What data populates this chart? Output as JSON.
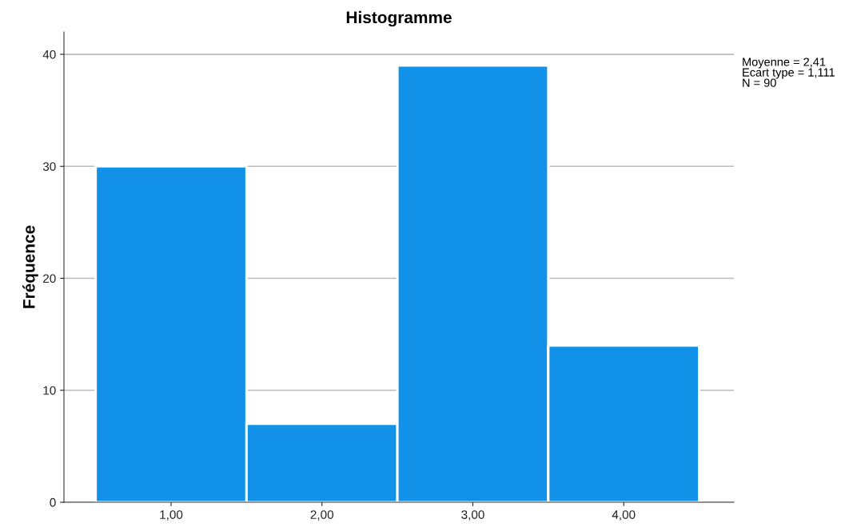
{
  "chart_data": {
    "type": "histogram",
    "title": "Histogramme",
    "ylabel": "Fréquence",
    "bins": [
      0.5,
      1.5,
      2.5,
      3.5,
      4.5
    ],
    "values": [
      30,
      7,
      39,
      14
    ],
    "color": "#1192e8",
    "xlim": [
      0.29,
      4.73
    ],
    "xticks": [
      {
        "value": 1,
        "label": "1,00"
      },
      {
        "value": 2,
        "label": "2,00"
      },
      {
        "value": 3,
        "label": "3,00"
      },
      {
        "value": 4,
        "label": "4,00"
      }
    ],
    "ylim": [
      0,
      42
    ],
    "yticks": [
      0,
      10,
      20,
      30,
      40
    ],
    "grid": "y",
    "annotations": [
      "Moyenne = 2,41",
      "Ecart type = 1,111",
      "N = 90"
    ]
  }
}
